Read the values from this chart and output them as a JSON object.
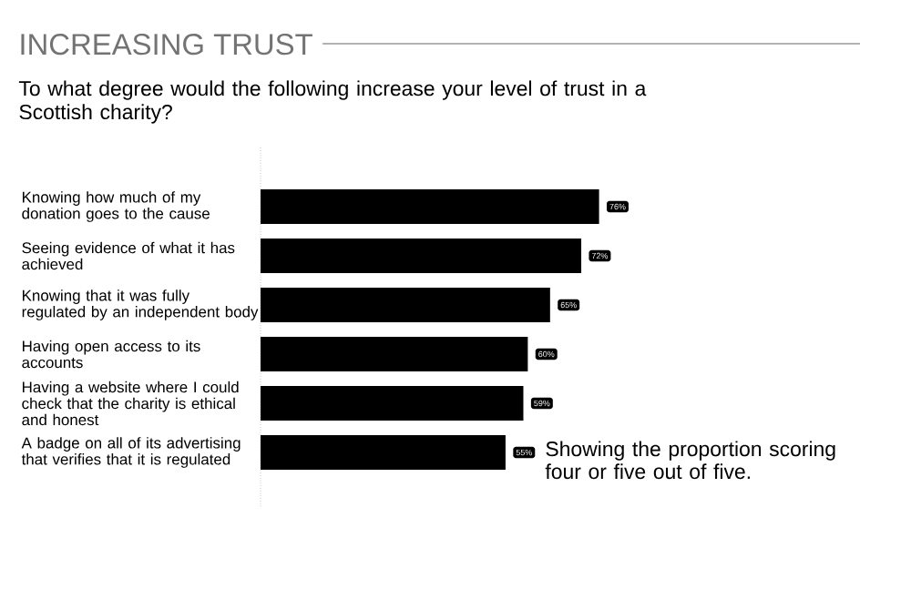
{
  "chart_data": {
    "type": "bar",
    "orientation": "horizontal",
    "title": "INCREASING TRUST",
    "subtitle": "To what degree would the following increase your level of trust in a Scottish charity?",
    "categories": [
      "Knowing how much of my donation goes to the cause",
      "Seeing evidence of what it has achieved",
      "Knowing that it was fully regulated by an independent body",
      "Having open access to its accounts",
      "Having a website where I could check that the charity is ethical and honest",
      "A badge on all of its advertising that verifies that it is regulated"
    ],
    "values": [
      76,
      72,
      65,
      60,
      59,
      55
    ],
    "value_labels": [
      "76%",
      "72%",
      "65%",
      "60%",
      "59%",
      "55%"
    ],
    "color": "#000000",
    "annotations": [
      "Showing the proportion scoring four or five out of five."
    ]
  }
}
